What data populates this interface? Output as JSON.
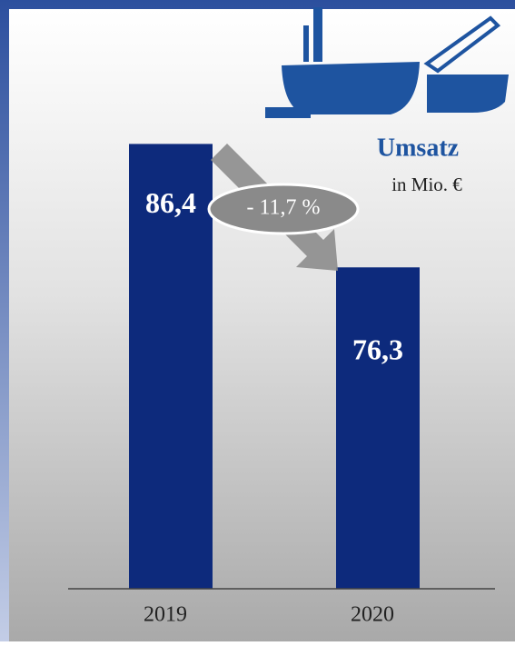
{
  "chart_data": {
    "type": "bar",
    "title": "Umsatz",
    "subtitle": "in Mio. €",
    "categories": [
      "2019",
      "2020"
    ],
    "values": [
      86.4,
      76.3
    ],
    "value_labels": [
      "86,4",
      "76,3"
    ],
    "color": "#0d2a7c",
    "ylim": [
      50,
      90
    ],
    "annotation": "- 11,7 %"
  }
}
